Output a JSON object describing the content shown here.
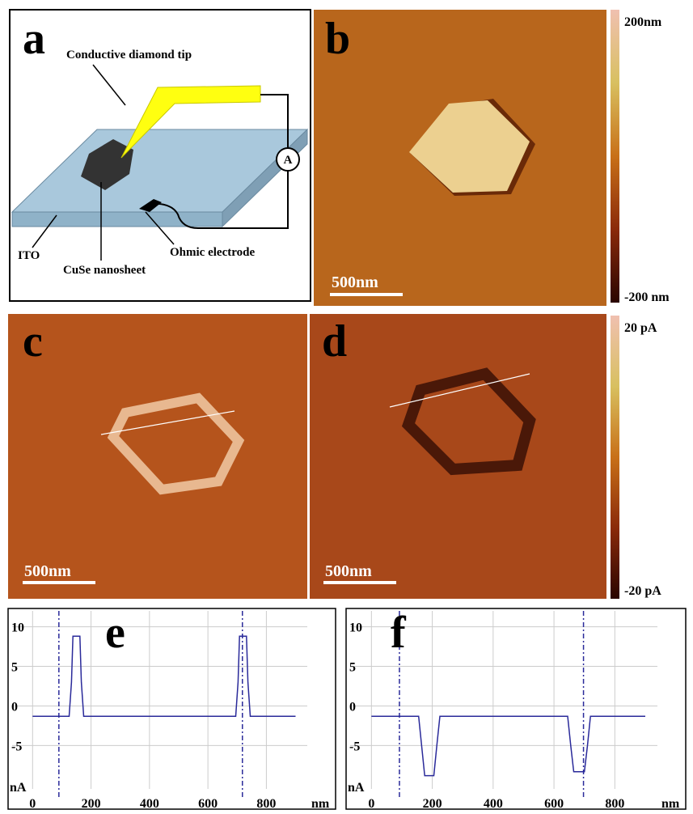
{
  "panels": {
    "a": {
      "letter": "a",
      "tip": "Conductive diamond tip",
      "ammeter": "A",
      "substrate": "ITO",
      "sheet": "CuSe nanosheet",
      "electrode": "Ohmic electrode"
    },
    "b": {
      "letter": "b",
      "scale_bar": "500nm"
    },
    "c": {
      "letter": "c",
      "scale_bar": "500nm"
    },
    "d": {
      "letter": "d",
      "scale_bar": "500nm"
    },
    "colorbars": [
      {
        "max": "200nm",
        "min": "-200 nm"
      },
      {
        "max": "20 pA",
        "min": "-20 pA"
      }
    ]
  },
  "chart_data": [
    {
      "type": "line",
      "label": "e",
      "x_label": "nm",
      "y_label": "nA",
      "xlim": [
        -70,
        940
      ],
      "ylim": [
        -11.5,
        12
      ],
      "xticks": [
        0,
        200,
        400,
        600,
        800
      ],
      "yticks": [
        10,
        5,
        0,
        -5
      ],
      "grid": true,
      "markers": [
        90,
        718
      ],
      "color": "#2a2a9a",
      "x": [
        0,
        125,
        133,
        138,
        162,
        167,
        175,
        695,
        703,
        708,
        732,
        737,
        745,
        900
      ],
      "values": [
        -1.3,
        -1.3,
        3,
        8.8,
        8.8,
        3,
        -1.3,
        -1.3,
        3,
        8.8,
        8.8,
        3,
        -1.3,
        -1.3
      ]
    },
    {
      "type": "line",
      "label": "f",
      "x_label": "nm",
      "y_label": "nA",
      "xlim": [
        -70,
        940
      ],
      "ylim": [
        -11.5,
        12
      ],
      "xticks": [
        0,
        200,
        400,
        600,
        800
      ],
      "yticks": [
        10,
        5,
        0,
        -5
      ],
      "grid": true,
      "markers": [
        92,
        697
      ],
      "color": "#2a2a9a",
      "x": [
        0,
        155,
        165,
        175,
        205,
        215,
        225,
        645,
        655,
        665,
        700,
        710,
        720,
        900
      ],
      "values": [
        -1.3,
        -1.3,
        -5,
        -8.8,
        -8.8,
        -5,
        -1.3,
        -1.3,
        -5,
        -8.3,
        -8.3,
        -5,
        -1.3,
        -1.3
      ]
    }
  ]
}
